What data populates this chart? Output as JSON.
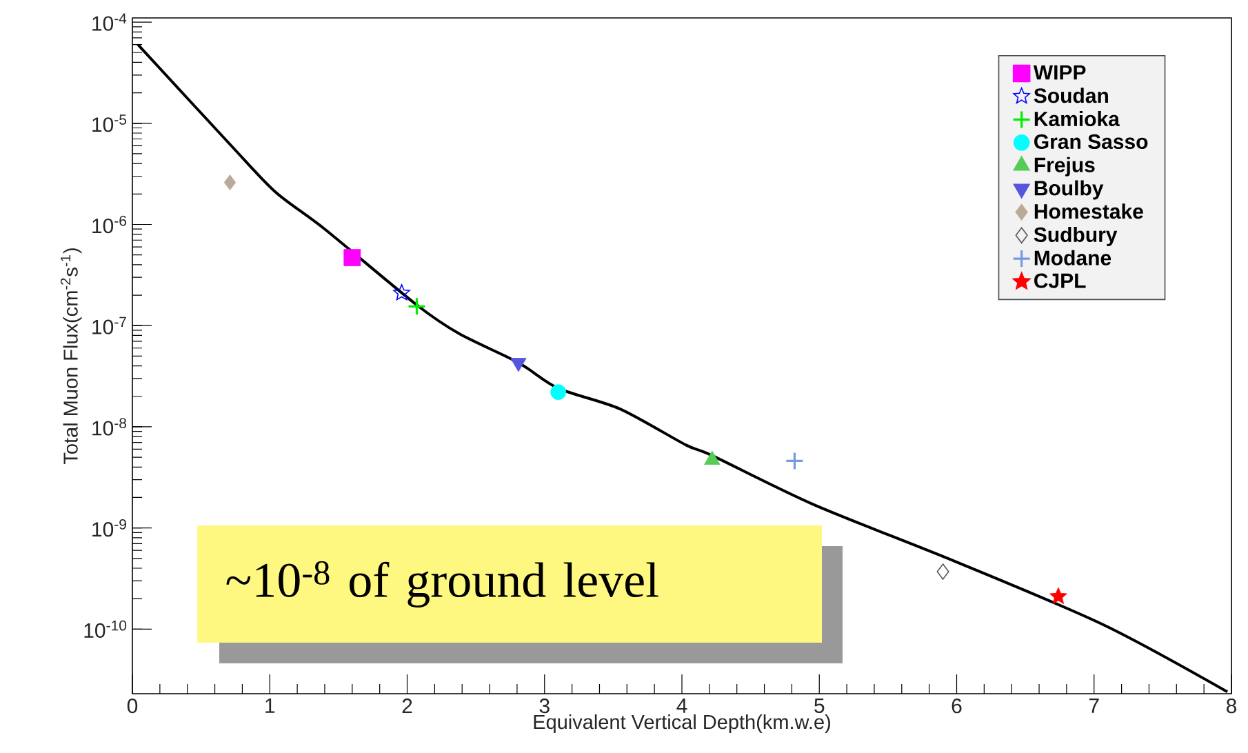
{
  "chart_data": {
    "type": "scatter",
    "xlabel": "Equivalent Vertical Depth(km.w.e)",
    "ylabel": "Total Muon Flux(cm$^{-2}$s$^{-1}$)",
    "log": "y",
    "xlim": [
      0,
      8
    ],
    "xticks": [
      0,
      1,
      2,
      3,
      4,
      5,
      6,
      7,
      8
    ],
    "ylim": [
      2.3e-11,
      0.00011
    ],
    "yticks": [
      {
        "value": 1e-10,
        "label": "10$^{-10}$"
      },
      {
        "value": 1e-09,
        "label": "10$^{-9}$"
      },
      {
        "value": 1e-08,
        "label": "10$^{-8}$"
      },
      {
        "value": 1e-07,
        "label": "10$^{-7}$"
      },
      {
        "value": 1e-06,
        "label": "10$^{-6}$"
      },
      {
        "value": 1e-05,
        "label": "10$^{-5}$"
      },
      {
        "value": 0.0001,
        "label": "10$^{-4}$"
      }
    ],
    "legend": "top right",
    "grid": false,
    "series": [
      {
        "type": "line",
        "color": "#000000",
        "marker": "none",
        "x": [
          0.04,
          0.71,
          1.04,
          1.4,
          2.07,
          2.38,
          2.81,
          3.1,
          3.55,
          4.03,
          4.22,
          4.96,
          6.0,
          7.07,
          7.97
        ],
        "values": [
          6e-05,
          6.2e-06,
          2.1e-06,
          9e-07,
          1.6e-07,
          8.3e-08,
          4.3e-08,
          2.4e-08,
          1.5e-08,
          6.6e-09,
          5.2e-09,
          1.7e-09,
          4.6e-10,
          1.1e-10,
          2.4e-11
        ]
      },
      {
        "name": "WIPP",
        "color": "#ff00ff",
        "marker": "square",
        "x": [
          1.6
        ],
        "values": [
          4.7e-07
        ]
      },
      {
        "name": "Soudan",
        "color": "#0000ff",
        "marker": "star",
        "x": [
          1.96
        ],
        "values": [
          2.1e-07
        ]
      },
      {
        "name": "Kamioka",
        "color": "#00ee00",
        "marker": "cross",
        "x": [
          2.07
        ],
        "values": [
          1.55e-07
        ]
      },
      {
        "name": "Gran Sasso",
        "color": "#00ffff",
        "marker": "circle",
        "x": [
          3.1
        ],
        "values": [
          2.2e-08
        ]
      },
      {
        "name": "Frejus",
        "color": "#55cc55",
        "marker": "triangle",
        "x": [
          4.22
        ],
        "values": [
          4.7e-09
        ]
      },
      {
        "name": "Boulby",
        "color": "#5555dd",
        "marker": "triangle-down",
        "x": [
          2.81
        ],
        "values": [
          4.3e-08
        ]
      },
      {
        "name": "Homestake",
        "color": "#bbaa99",
        "marker": "diamond",
        "x": [
          0.71
        ],
        "values": [
          2.6e-06
        ]
      },
      {
        "name": "Sudbury",
        "color": "#555555",
        "marker": "diamond-open",
        "x": [
          5.9
        ],
        "values": [
          3.7e-10
        ]
      },
      {
        "name": "Modane",
        "color": "#7799dd",
        "marker": "cross",
        "x": [
          4.82
        ],
        "values": [
          4.6e-09
        ]
      },
      {
        "name": "CJPL",
        "color": "#ff0000",
        "marker": "star-filled",
        "x": [
          6.74
        ],
        "values": [
          2.1e-10
        ]
      }
    ],
    "annotations": [
      "~10$^{-8}$ of ground level"
    ]
  }
}
